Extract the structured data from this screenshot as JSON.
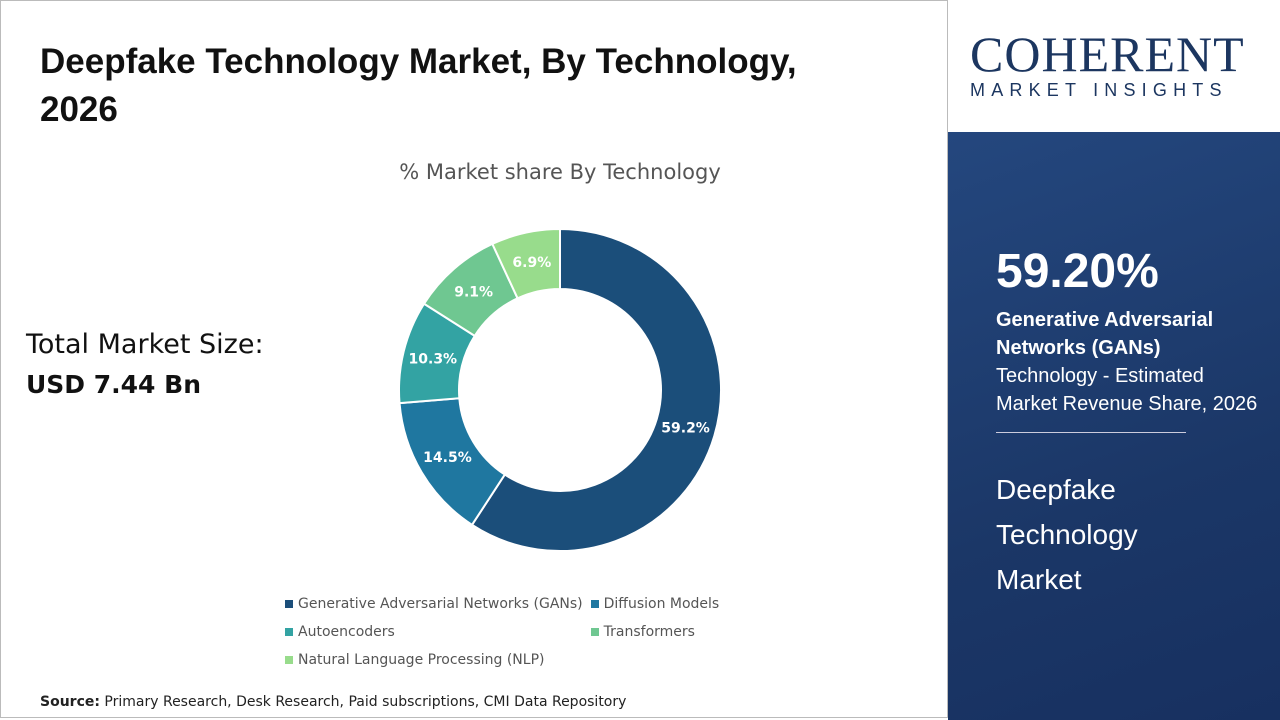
{
  "title": "Deepfake Technology Market, By Technology, 2026",
  "total_label": "Total Market Size:",
  "total_value": "USD 7.44 Bn",
  "source_label": "Source:",
  "source_text": " Primary Research, Desk Research, Paid subscriptions, CMI Data Repository",
  "logo": {
    "line1": "COHERENT",
    "line2": "MARKET INSIGHTS"
  },
  "panel": {
    "percent": "59.20%",
    "segment": "Generative Adversarial Networks (GANs)",
    "description": "Technology - Estimated Market Revenue Share, 2026",
    "market": "Deepfake Technology Market"
  },
  "chart_data": {
    "type": "pie",
    "donut": true,
    "title": "% Market share By Technology",
    "categories": [
      "Generative Adversarial Networks (GANs)",
      "Diffusion Models",
      "Autoencoders",
      "Transformers",
      "Natural Language Processing (NLP)"
    ],
    "values": [
      59.2,
      14.5,
      10.3,
      9.1,
      6.9
    ],
    "labels": [
      "59.2%",
      "14.5%",
      "10.3%",
      "9.1%",
      "6.9%"
    ],
    "colors": [
      "#1b4e7a",
      "#1f77a0",
      "#33a3a3",
      "#6fc791",
      "#98dc8c"
    ],
    "legend": "bottom"
  }
}
